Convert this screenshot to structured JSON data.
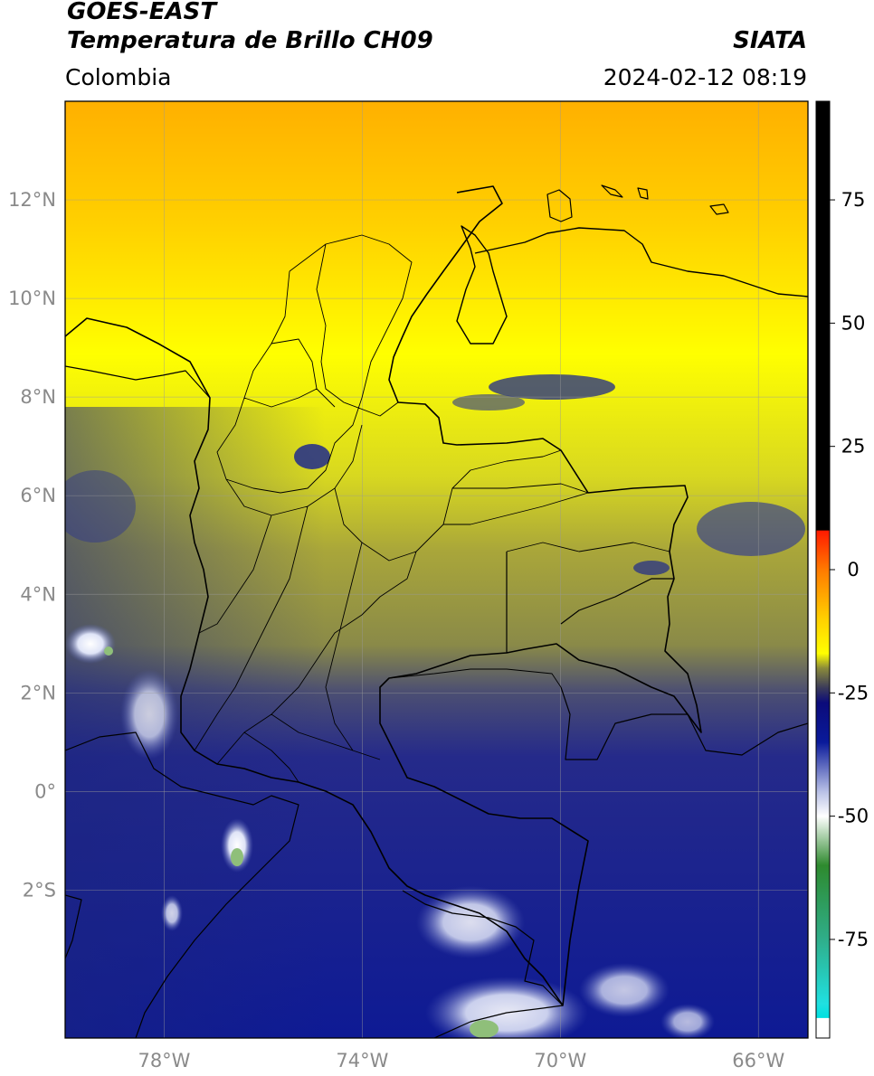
{
  "header": {
    "title_line1": "GOES-EAST",
    "title_line2": "Temperatura de Brillo CH09",
    "region": "Colombia",
    "brand": "SIATA",
    "datetime": "2024-02-12 08:19"
  },
  "map": {
    "lon_range": [
      -80,
      -65
    ],
    "lat_range": [
      -5,
      14
    ],
    "lat_ticks": [
      {
        "value": 12,
        "label": "12°N"
      },
      {
        "value": 10,
        "label": "10°N"
      },
      {
        "value": 8,
        "label": "8°N"
      },
      {
        "value": 6,
        "label": "6°N"
      },
      {
        "value": 4,
        "label": "4°N"
      },
      {
        "value": 2,
        "label": "2°N"
      },
      {
        "value": 0,
        "label": "0°"
      },
      {
        "value": -2,
        "label": "2°S"
      }
    ],
    "lon_ticks": [
      {
        "value": -78,
        "label": "78°W"
      },
      {
        "value": -74,
        "label": "74°W"
      },
      {
        "value": -70,
        "label": "70°W"
      },
      {
        "value": -66,
        "label": "66°W"
      }
    ],
    "grid": true,
    "gridline_color": "#999999",
    "border_color": "#000000"
  },
  "colorbar": {
    "range": [
      -95,
      95
    ],
    "tick_labels": [
      {
        "value": 75,
        "label": "75"
      },
      {
        "value": 50,
        "label": "50"
      },
      {
        "value": 25,
        "label": "25"
      },
      {
        "value": 0,
        "label": "0"
      },
      {
        "value": -25,
        "label": "-25"
      },
      {
        "value": -50,
        "label": "-50"
      },
      {
        "value": -75,
        "label": "-75"
      }
    ],
    "stops": [
      {
        "value": 95,
        "color": "#000000"
      },
      {
        "value": 8,
        "color": "#000000"
      },
      {
        "value": 7.9,
        "color": "#ff1a00"
      },
      {
        "value": 0,
        "color": "#ff7a00"
      },
      {
        "value": -10,
        "color": "#ffd000"
      },
      {
        "value": -17,
        "color": "#ffff00"
      },
      {
        "value": -20,
        "color": "#8a8a3a"
      },
      {
        "value": -24,
        "color": "#3a3a5a"
      },
      {
        "value": -27,
        "color": "#0b0b7a"
      },
      {
        "value": -35,
        "color": "#0a1a9a"
      },
      {
        "value": -45,
        "color": "#b8c0e6"
      },
      {
        "value": -50,
        "color": "#ffffff"
      },
      {
        "value": -60,
        "color": "#2e8a2e"
      },
      {
        "value": -75,
        "color": "#2fae8a"
      },
      {
        "value": -88,
        "color": "#20e0e0"
      },
      {
        "value": -90.9,
        "color": "#00e0e0"
      },
      {
        "value": -91,
        "color": "#ffffff"
      },
      {
        "value": -95,
        "color": "#ffffff"
      }
    ]
  }
}
